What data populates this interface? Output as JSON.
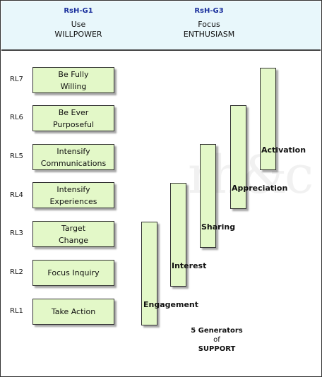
{
  "header": {
    "g1": {
      "code": "RsH-G1",
      "line1": "Use",
      "line2": "WILLPOWER"
    },
    "g3": {
      "code": "RsH-G3",
      "line1": "Focus",
      "line2": "ENTHUSIASM"
    }
  },
  "levels": [
    "RL7",
    "RL6",
    "RL5",
    "RL4",
    "RL3",
    "RL2",
    "RL1"
  ],
  "willpower_boxes": [
    {
      "line1": "Be Fully",
      "line2": "Willing"
    },
    {
      "line1": "Be Ever",
      "line2": "Purposeful"
    },
    {
      "line1": "Intensify",
      "line2": "Communications"
    },
    {
      "line1": "Intensify",
      "line2": "Experiences"
    },
    {
      "line1": "Target",
      "line2": "Change"
    },
    {
      "line1": "Focus Inquiry"
    },
    {
      "line1": "Take Action"
    }
  ],
  "enthusiasm_bars": [
    "Engagement",
    "Interest",
    "Sharing",
    "Appreciation",
    "Activation"
  ],
  "footer": {
    "line1": "5 Generators",
    "line2": "of",
    "line3": "SUPPORT"
  },
  "colors": {
    "box_fill": "#e3f8c8",
    "header_bg": "#e8f7fb",
    "code_blue": "#1a2f9c"
  }
}
